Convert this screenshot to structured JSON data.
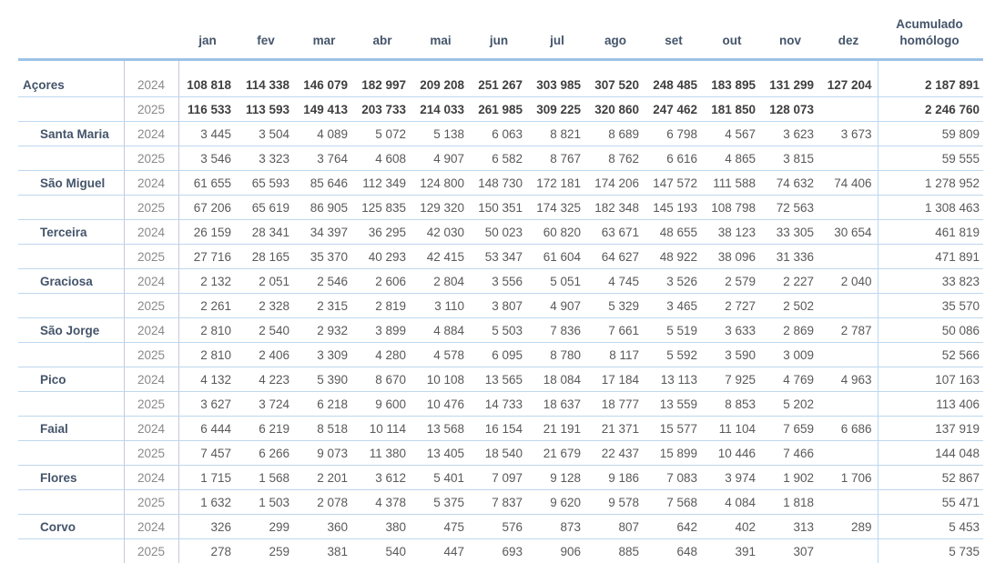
{
  "colors": {
    "header_text": "#44546a",
    "data_text": "#595959",
    "year_text": "#8a8a8a",
    "accent_line": "#9dc3e6",
    "row_line": "#bdd7ee",
    "column_line": "#c3cbd6"
  },
  "header": {
    "months": [
      "jan",
      "fev",
      "mar",
      "abr",
      "mai",
      "jun",
      "jul",
      "ago",
      "set",
      "out",
      "nov",
      "dez"
    ],
    "accumulated_label": "Acumulado homólogo"
  },
  "chart_data": {
    "type": "table",
    "columns": [
      "",
      "",
      "jan",
      "fev",
      "mar",
      "abr",
      "mai",
      "jun",
      "jul",
      "ago",
      "set",
      "out",
      "nov",
      "dez",
      "Acumulado homólogo"
    ],
    "regions": [
      {
        "name": "Açores",
        "emphasis": true,
        "rows": [
          {
            "year": "2024",
            "values": [
              "108 818",
              "114 338",
              "146 079",
              "182 997",
              "209 208",
              "251 267",
              "303 985",
              "307 520",
              "248 485",
              "183 895",
              "131 299",
              "127 204"
            ],
            "accumulated": "2 187 891"
          },
          {
            "year": "2025",
            "values": [
              "116 533",
              "113 593",
              "149 413",
              "203 733",
              "214 033",
              "261 985",
              "309 225",
              "320 860",
              "247 462",
              "181 850",
              "128 073",
              ""
            ],
            "accumulated": "2 246 760"
          }
        ]
      },
      {
        "name": "Santa Maria",
        "emphasis": false,
        "rows": [
          {
            "year": "2024",
            "values": [
              "3 445",
              "3 504",
              "4 089",
              "5 072",
              "5 138",
              "6 063",
              "8 821",
              "8 689",
              "6 798",
              "4 567",
              "3 623",
              "3 673"
            ],
            "accumulated": "59 809"
          },
          {
            "year": "2025",
            "values": [
              "3 546",
              "3 323",
              "3 764",
              "4 608",
              "4 907",
              "6 582",
              "8 767",
              "8 762",
              "6 616",
              "4 865",
              "3 815",
              ""
            ],
            "accumulated": "59 555"
          }
        ]
      },
      {
        "name": "São Miguel",
        "emphasis": false,
        "rows": [
          {
            "year": "2024",
            "values": [
              "61 655",
              "65 593",
              "85 646",
              "112 349",
              "124 800",
              "148 730",
              "172 181",
              "174 206",
              "147 572",
              "111 588",
              "74 632",
              "74 406"
            ],
            "accumulated": "1 278 952"
          },
          {
            "year": "2025",
            "values": [
              "67 206",
              "65 619",
              "86 905",
              "125 835",
              "129 320",
              "150 351",
              "174 325",
              "182 348",
              "145 193",
              "108 798",
              "72 563",
              ""
            ],
            "accumulated": "1 308 463"
          }
        ]
      },
      {
        "name": "Terceira",
        "emphasis": false,
        "rows": [
          {
            "year": "2024",
            "values": [
              "26 159",
              "28 341",
              "34 397",
              "36 295",
              "42 030",
              "50 023",
              "60 820",
              "63 671",
              "48 655",
              "38 123",
              "33 305",
              "30 654"
            ],
            "accumulated": "461 819"
          },
          {
            "year": "2025",
            "values": [
              "27 716",
              "28 165",
              "35 370",
              "40 293",
              "42 415",
              "53 347",
              "61 604",
              "64 627",
              "48 922",
              "38 096",
              "31 336",
              ""
            ],
            "accumulated": "471 891"
          }
        ]
      },
      {
        "name": "Graciosa",
        "emphasis": false,
        "rows": [
          {
            "year": "2024",
            "values": [
              "2 132",
              "2 051",
              "2 546",
              "2 606",
              "2 804",
              "3 556",
              "5 051",
              "4 745",
              "3 526",
              "2 579",
              "2 227",
              "2 040"
            ],
            "accumulated": "33 823"
          },
          {
            "year": "2025",
            "values": [
              "2 261",
              "2 328",
              "2 315",
              "2 819",
              "3 110",
              "3 807",
              "4 907",
              "5 329",
              "3 465",
              "2 727",
              "2 502",
              ""
            ],
            "accumulated": "35 570"
          }
        ]
      },
      {
        "name": "São Jorge",
        "emphasis": false,
        "rows": [
          {
            "year": "2024",
            "values": [
              "2 810",
              "2 540",
              "2 932",
              "3 899",
              "4 884",
              "5 503",
              "7 836",
              "7 661",
              "5 519",
              "3 633",
              "2 869",
              "2 787"
            ],
            "accumulated": "50 086"
          },
          {
            "year": "2025",
            "values": [
              "2 810",
              "2 406",
              "3 309",
              "4 280",
              "4 578",
              "6 095",
              "8 780",
              "8 117",
              "5 592",
              "3 590",
              "3 009",
              ""
            ],
            "accumulated": "52 566"
          }
        ]
      },
      {
        "name": "Pico",
        "emphasis": false,
        "rows": [
          {
            "year": "2024",
            "values": [
              "4 132",
              "4 223",
              "5 390",
              "8 670",
              "10 108",
              "13 565",
              "18 084",
              "17 184",
              "13 113",
              "7 925",
              "4 769",
              "4 963"
            ],
            "accumulated": "107 163"
          },
          {
            "year": "2025",
            "values": [
              "3 627",
              "3 724",
              "6 218",
              "9 600",
              "10 476",
              "14 733",
              "18 637",
              "18 777",
              "13 559",
              "8 853",
              "5 202",
              ""
            ],
            "accumulated": "113 406"
          }
        ]
      },
      {
        "name": "Faial",
        "emphasis": false,
        "rows": [
          {
            "year": "2024",
            "values": [
              "6 444",
              "6 219",
              "8 518",
              "10 114",
              "13 568",
              "16 154",
              "21 191",
              "21 371",
              "15 577",
              "11 104",
              "7 659",
              "6 686"
            ],
            "accumulated": "137 919"
          },
          {
            "year": "2025",
            "values": [
              "7 457",
              "6 266",
              "9 073",
              "11 380",
              "13 405",
              "18 540",
              "21 679",
              "22 437",
              "15 899",
              "10 446",
              "7 466",
              ""
            ],
            "accumulated": "144 048"
          }
        ]
      },
      {
        "name": "Flores",
        "emphasis": false,
        "rows": [
          {
            "year": "2024",
            "values": [
              "1 715",
              "1 568",
              "2 201",
              "3 612",
              "5 401",
              "7 097",
              "9 128",
              "9 186",
              "7 083",
              "3 974",
              "1 902",
              "1 706"
            ],
            "accumulated": "52 867"
          },
          {
            "year": "2025",
            "values": [
              "1 632",
              "1 503",
              "2 078",
              "4 378",
              "5 375",
              "7 837",
              "9 620",
              "9 578",
              "7 568",
              "4 084",
              "1 818",
              ""
            ],
            "accumulated": "55 471"
          }
        ]
      },
      {
        "name": "Corvo",
        "emphasis": false,
        "rows": [
          {
            "year": "2024",
            "values": [
              "326",
              "299",
              "360",
              "380",
              "475",
              "576",
              "873",
              "807",
              "642",
              "402",
              "313",
              "289"
            ],
            "accumulated": "5 453"
          },
          {
            "year": "2025",
            "values": [
              "278",
              "259",
              "381",
              "540",
              "447",
              "693",
              "906",
              "885",
              "648",
              "391",
              "307",
              ""
            ],
            "accumulated": "5 735"
          }
        ]
      }
    ]
  }
}
